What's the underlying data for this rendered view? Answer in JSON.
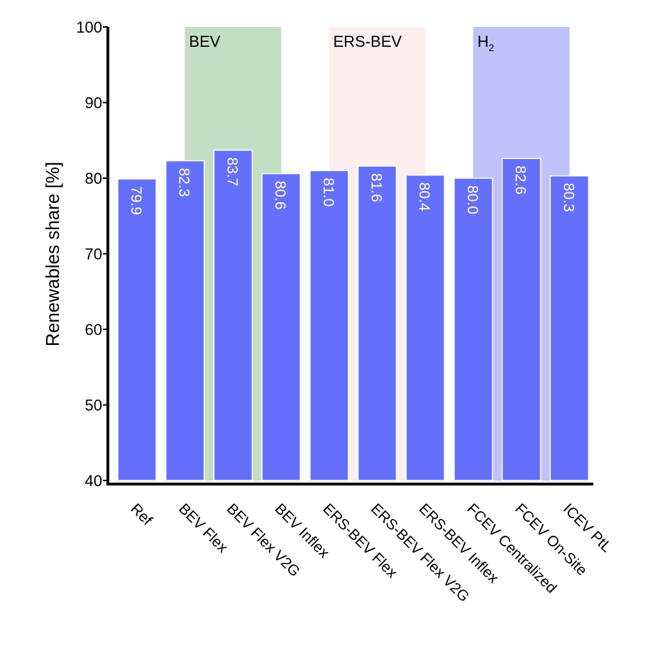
{
  "chart_data": {
    "type": "bar",
    "title": "",
    "xlabel": "",
    "ylabel": "Renewables share [%]",
    "ylim": [
      40,
      100
    ],
    "yticks": [
      40,
      50,
      60,
      70,
      80,
      90,
      100
    ],
    "grid": false,
    "categories": [
      "Ref",
      "BEV Flex",
      "BEV Flex V2G",
      "BEV Inflex",
      "ERS-BEV Flex",
      "ERS-BEV Flex V2G",
      "ERS-BEV Inflex",
      "FCEV Centralized",
      "FCEV On-Site",
      "ICEV PtL"
    ],
    "values": [
      79.9,
      82.3,
      83.7,
      80.6,
      81.0,
      81.6,
      80.4,
      80.0,
      82.6,
      80.3
    ],
    "value_labels": [
      "79.9",
      "82.3",
      "83.7",
      "80.6",
      "81.0",
      "81.6",
      "80.4",
      "80.0",
      "82.6",
      "80.3"
    ],
    "bar_color": "#6470fb",
    "groups": [
      {
        "name": "BEV",
        "sub": "",
        "categories": [
          "BEV Flex V2G"
        ],
        "color": "#c2dfc3"
      },
      {
        "name": "ERS-BEV",
        "sub": "",
        "categories": [
          "ERS-BEV Flex V2G"
        ],
        "color": "#fdeef0"
      },
      {
        "name": "H",
        "sub": "2",
        "categories": [
          "FCEV On-Site"
        ],
        "color": "#c0c2fc"
      }
    ]
  }
}
